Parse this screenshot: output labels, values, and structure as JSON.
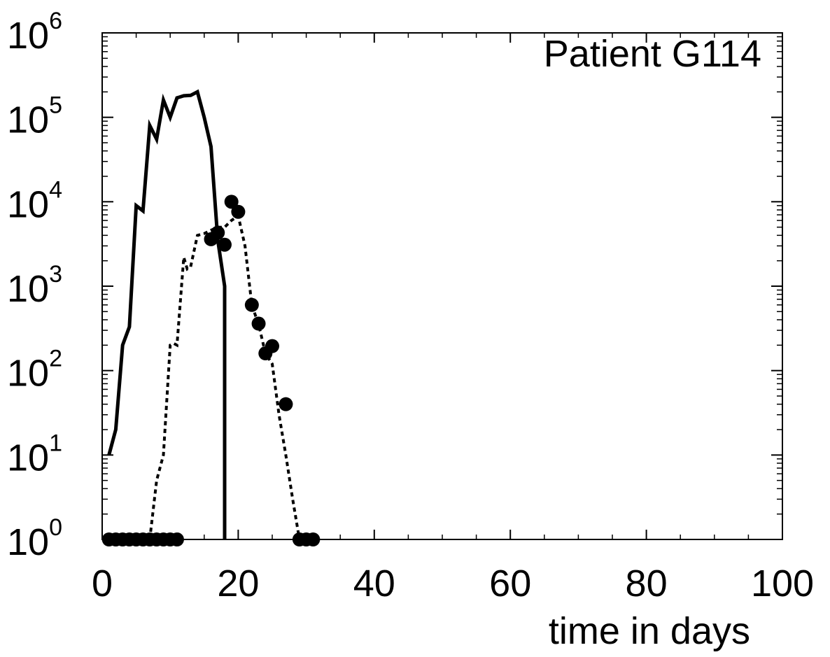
{
  "chart_data": {
    "type": "line",
    "annotation": "Patient G114",
    "xlabel": "time in days",
    "ylabel": "",
    "xlim": [
      0,
      100
    ],
    "ylim": [
      1,
      1000000
    ],
    "y_scale": "log",
    "grid": false,
    "x_ticks": [
      {
        "value": 0,
        "label": "0"
      },
      {
        "value": 20,
        "label": "20"
      },
      {
        "value": 40,
        "label": "40"
      },
      {
        "value": 60,
        "label": "60"
      },
      {
        "value": 80,
        "label": "80"
      },
      {
        "value": 100,
        "label": "100"
      }
    ],
    "y_ticks": [
      {
        "value": 1,
        "base": "10",
        "exp": "0"
      },
      {
        "value": 10,
        "base": "10",
        "exp": "1"
      },
      {
        "value": 100,
        "base": "10",
        "exp": "2"
      },
      {
        "value": 1000,
        "base": "10",
        "exp": "3"
      },
      {
        "value": 10000,
        "base": "10",
        "exp": "4"
      },
      {
        "value": 100000,
        "base": "10",
        "exp": "5"
      },
      {
        "value": 1000000,
        "base": "10",
        "exp": "6"
      }
    ],
    "series": [
      {
        "style": "solid",
        "color": "#000000",
        "points": [
          [
            1,
            10
          ],
          [
            2,
            20
          ],
          [
            3,
            200
          ],
          [
            4,
            330
          ],
          [
            5,
            9000
          ],
          [
            6,
            7800
          ],
          [
            7,
            80000
          ],
          [
            8,
            55000
          ],
          [
            9,
            160000
          ],
          [
            10,
            100000
          ],
          [
            11,
            170000
          ],
          [
            12,
            180000
          ],
          [
            13,
            182000
          ],
          [
            14,
            200000
          ],
          [
            15,
            100000
          ],
          [
            16,
            45000
          ],
          [
            17,
            3500
          ],
          [
            18,
            1000
          ],
          [
            18,
            1
          ]
        ]
      },
      {
        "style": "dotted",
        "color": "#000000",
        "points": [
          [
            7,
            1
          ],
          [
            8,
            5
          ],
          [
            9,
            10
          ],
          [
            10,
            200
          ],
          [
            10.5,
            210
          ],
          [
            11,
            200
          ],
          [
            12,
            2200
          ],
          [
            12.5,
            1600
          ],
          [
            13,
            1700
          ],
          [
            14,
            4000
          ],
          [
            15,
            4200
          ],
          [
            16,
            4600
          ],
          [
            17,
            5000
          ],
          [
            18,
            5000
          ],
          [
            19,
            6000
          ],
          [
            20,
            6800
          ],
          [
            21,
            3000
          ],
          [
            22,
            600
          ],
          [
            23,
            350
          ],
          [
            24,
            160
          ],
          [
            25,
            120
          ],
          [
            26,
            30
          ],
          [
            27,
            10
          ],
          [
            28,
            3
          ],
          [
            29,
            1
          ]
        ]
      },
      {
        "style": "markers",
        "color": "#000000",
        "points": [
          [
            1,
            1
          ],
          [
            2,
            1
          ],
          [
            3,
            1
          ],
          [
            4,
            1
          ],
          [
            5,
            1
          ],
          [
            6,
            1
          ],
          [
            7,
            1
          ],
          [
            8,
            1
          ],
          [
            9,
            1
          ],
          [
            10,
            1
          ],
          [
            11,
            1
          ],
          [
            16,
            3600
          ],
          [
            17,
            4300
          ],
          [
            18,
            3100
          ],
          [
            19,
            10000
          ],
          [
            20,
            7600
          ],
          [
            22,
            600
          ],
          [
            23,
            360
          ],
          [
            24,
            160
          ],
          [
            25,
            195
          ],
          [
            27,
            40
          ],
          [
            29,
            1
          ],
          [
            30,
            1
          ],
          [
            31,
            1
          ]
        ]
      }
    ]
  }
}
